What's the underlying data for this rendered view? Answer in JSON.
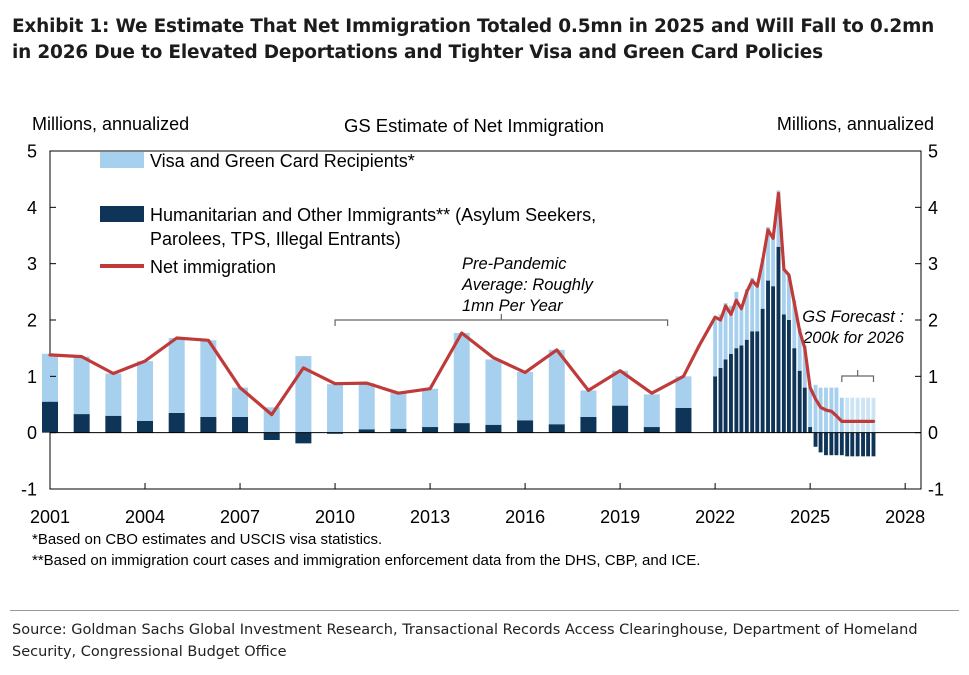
{
  "exhibit": {
    "title": "Exhibit 1: We Estimate That Net Immigration Totaled 0.5mn in 2025 and Will Fall to 0.2mn in 2026 Due to Elevated Deportations and Tighter Visa and Green Card Policies",
    "note_1": "*Based on CBO estimates and USCIS visa statistics.",
    "note_2": "**Based on immigration court cases and immigration enforcement data from the DHS, CBP, and ICE.",
    "source": "Source: Goldman Sachs Global Investment Research, Transactional Records Access Clearinghouse, Department of Homeland Security, Congressional Budget Office"
  },
  "chart_data": {
    "type": "bar",
    "title": "GS Estimate of Net Immigration",
    "ylabel_left": "Millions, annualized",
    "ylabel_right": "Millions, annualized",
    "ylim": [
      -1,
      5
    ],
    "yticks": [
      -1,
      0,
      1,
      2,
      3,
      4,
      5
    ],
    "xlim": [
      2001,
      2028.5
    ],
    "xticks": [
      2001,
      2004,
      2007,
      2010,
      2013,
      2016,
      2019,
      2022,
      2025,
      2028
    ],
    "grid": false,
    "legend_position": "top-left",
    "colors": {
      "visa": "#a7d0ee",
      "humanitarian": "#0e3557",
      "net": "#bf3b3a",
      "forecast_visa": "#cde4f5"
    },
    "legend": [
      {
        "key": "visa",
        "label": "Visa and Green Card Recipients*"
      },
      {
        "key": "humanitarian",
        "label": "Humanitarian and Other Immigrants** (Asylum Seekers, Parolees, TPS, Illegal Entrants)"
      },
      {
        "key": "net",
        "label": "Net immigration"
      }
    ],
    "annual": {
      "x": [
        2001,
        2002,
        2003,
        2004,
        2005,
        2006,
        2007,
        2008,
        2009,
        2010,
        2011,
        2012,
        2013,
        2014,
        2015,
        2016,
        2017,
        2018,
        2019,
        2020,
        2021
      ],
      "humanitarian": [
        0.55,
        0.33,
        0.3,
        0.21,
        0.35,
        0.28,
        0.28,
        -0.13,
        -0.19,
        -0.02,
        0.06,
        0.07,
        0.1,
        0.17,
        0.14,
        0.22,
        0.15,
        0.28,
        0.48,
        0.1,
        0.44
      ],
      "visa": [
        0.85,
        1.02,
        0.75,
        1.06,
        1.33,
        1.36,
        0.52,
        0.45,
        1.36,
        0.86,
        0.82,
        0.64,
        0.68,
        1.6,
        1.16,
        0.86,
        1.32,
        0.47,
        0.62,
        0.58,
        0.56
      ]
    },
    "net_immigration": {
      "x": [
        2001,
        2002,
        2003,
        2004,
        2005,
        2006,
        2007,
        2008,
        2009,
        2010,
        2011,
        2012,
        2013,
        2014,
        2015,
        2016,
        2017,
        2018,
        2019,
        2020,
        2021,
        2021.5,
        2021.75,
        2022.0,
        2022.17,
        2022.33,
        2022.5,
        2022.67,
        2022.83,
        2023.0,
        2023.17,
        2023.33,
        2023.5,
        2023.67,
        2023.83,
        2024.0,
        2024.17,
        2024.33,
        2024.5,
        2024.67,
        2024.83,
        2025.0,
        2025.17,
        2025.33,
        2025.5,
        2025.67,
        2025.83,
        2026.0,
        2026.5,
        2027.0
      ],
      "values": [
        1.38,
        1.35,
        1.05,
        1.27,
        1.68,
        1.64,
        0.8,
        0.32,
        1.15,
        0.87,
        0.88,
        0.7,
        0.78,
        1.77,
        1.33,
        1.07,
        1.47,
        0.75,
        1.1,
        0.7,
        1.0,
        1.55,
        1.8,
        2.05,
        2.0,
        2.25,
        2.1,
        2.35,
        2.2,
        2.5,
        2.7,
        2.6,
        3.05,
        3.6,
        3.45,
        4.25,
        2.9,
        2.8,
        2.3,
        1.8,
        1.5,
        0.8,
        0.6,
        0.45,
        0.4,
        0.38,
        0.3,
        0.2,
        0.2,
        0.2
      ]
    },
    "monthly_actual": {
      "x": [
        2022.0,
        2022.17,
        2022.33,
        2022.5,
        2022.67,
        2022.83,
        2023.0,
        2023.17,
        2023.33,
        2023.5,
        2023.67,
        2023.83,
        2024.0,
        2024.17,
        2024.33,
        2024.5,
        2024.67,
        2024.83,
        2025.0,
        2025.17,
        2025.33,
        2025.5,
        2025.67,
        2025.83,
        2026.0
      ],
      "humanitarian": [
        1.0,
        1.15,
        1.3,
        1.4,
        1.5,
        1.55,
        1.65,
        1.8,
        1.8,
        2.2,
        2.7,
        2.6,
        3.3,
        2.1,
        2.0,
        1.5,
        1.1,
        0.8,
        0.1,
        -0.25,
        -0.35,
        -0.4,
        -0.4,
        -0.4,
        -0.4
      ],
      "visa": [
        1.0,
        0.95,
        1.0,
        0.85,
        1.0,
        0.7,
        0.9,
        0.95,
        0.8,
        0.9,
        0.95,
        0.9,
        1.0,
        0.8,
        0.8,
        0.85,
        0.75,
        0.75,
        0.7,
        0.85,
        0.8,
        0.8,
        0.8,
        0.8,
        0.62
      ]
    },
    "forecast": {
      "x": [
        2026.17,
        2026.33,
        2026.5,
        2026.67,
        2026.83,
        2027.0
      ],
      "humanitarian": [
        -0.42,
        -0.42,
        -0.42,
        -0.42,
        -0.42,
        -0.42
      ],
      "visa": [
        0.62,
        0.62,
        0.62,
        0.62,
        0.62,
        0.62
      ]
    },
    "annotations": {
      "pre_pandemic": "Pre-Pandemic Average: Roughly 1mn Per Year",
      "pre_pandemic_lines": [
        "Pre-Pandemic",
        "Average: Roughly",
        "1mn Per Year"
      ],
      "pre_pandemic_span": [
        2010,
        2020.5
      ],
      "forecast": "GS Forecast : 200k for 2026",
      "forecast_lines": [
        "GS Forecast :",
        "200k for 2026"
      ],
      "forecast_span": [
        2026,
        2027
      ]
    }
  }
}
